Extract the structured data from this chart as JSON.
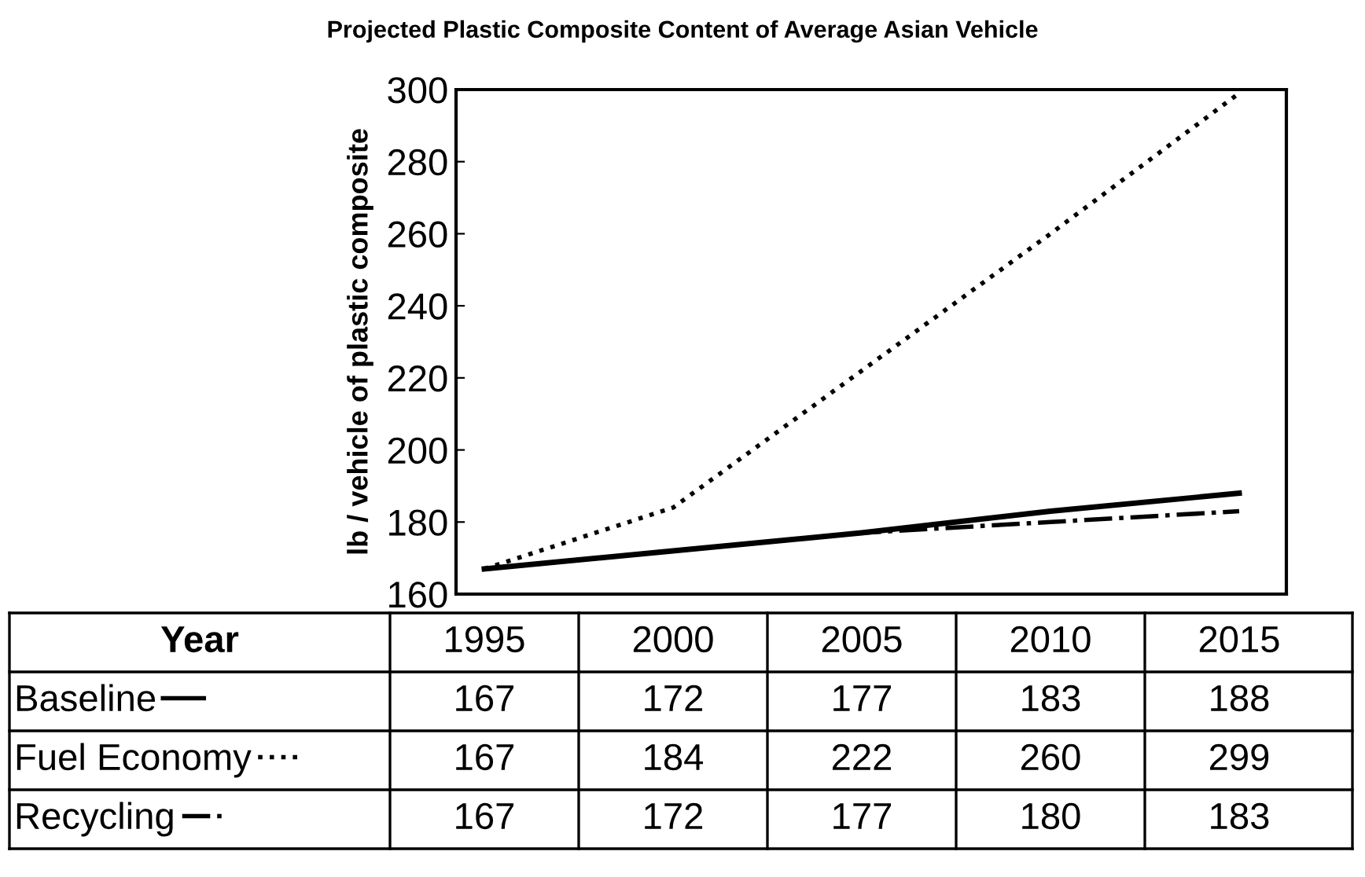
{
  "chart_data": {
    "type": "line",
    "title": "Projected Plastic Composite Content of Average Asian Vehicle",
    "xlabel": "Year",
    "ylabel": "lb / vehicle of plastic composite",
    "categories": [
      "1995",
      "2000",
      "2005",
      "2010",
      "2015"
    ],
    "series": [
      {
        "name": "Baseline",
        "color": "#000000",
        "line_style": "solid",
        "values": [
          167,
          172,
          177,
          183,
          188
        ]
      },
      {
        "name": "Fuel Economy",
        "color": "#000000",
        "line_style": "dotted",
        "values": [
          167,
          184,
          222,
          260,
          299
        ]
      },
      {
        "name": "Recycling",
        "color": "#000000",
        "line_style": "dashdot",
        "values": [
          167,
          172,
          177,
          180,
          183
        ]
      }
    ],
    "ylim": [
      160,
      300
    ],
    "yticks": [
      160,
      180,
      200,
      220,
      240,
      260,
      280,
      300
    ],
    "grid": false,
    "legend": "bottom left",
    "data_labels": true
  }
}
